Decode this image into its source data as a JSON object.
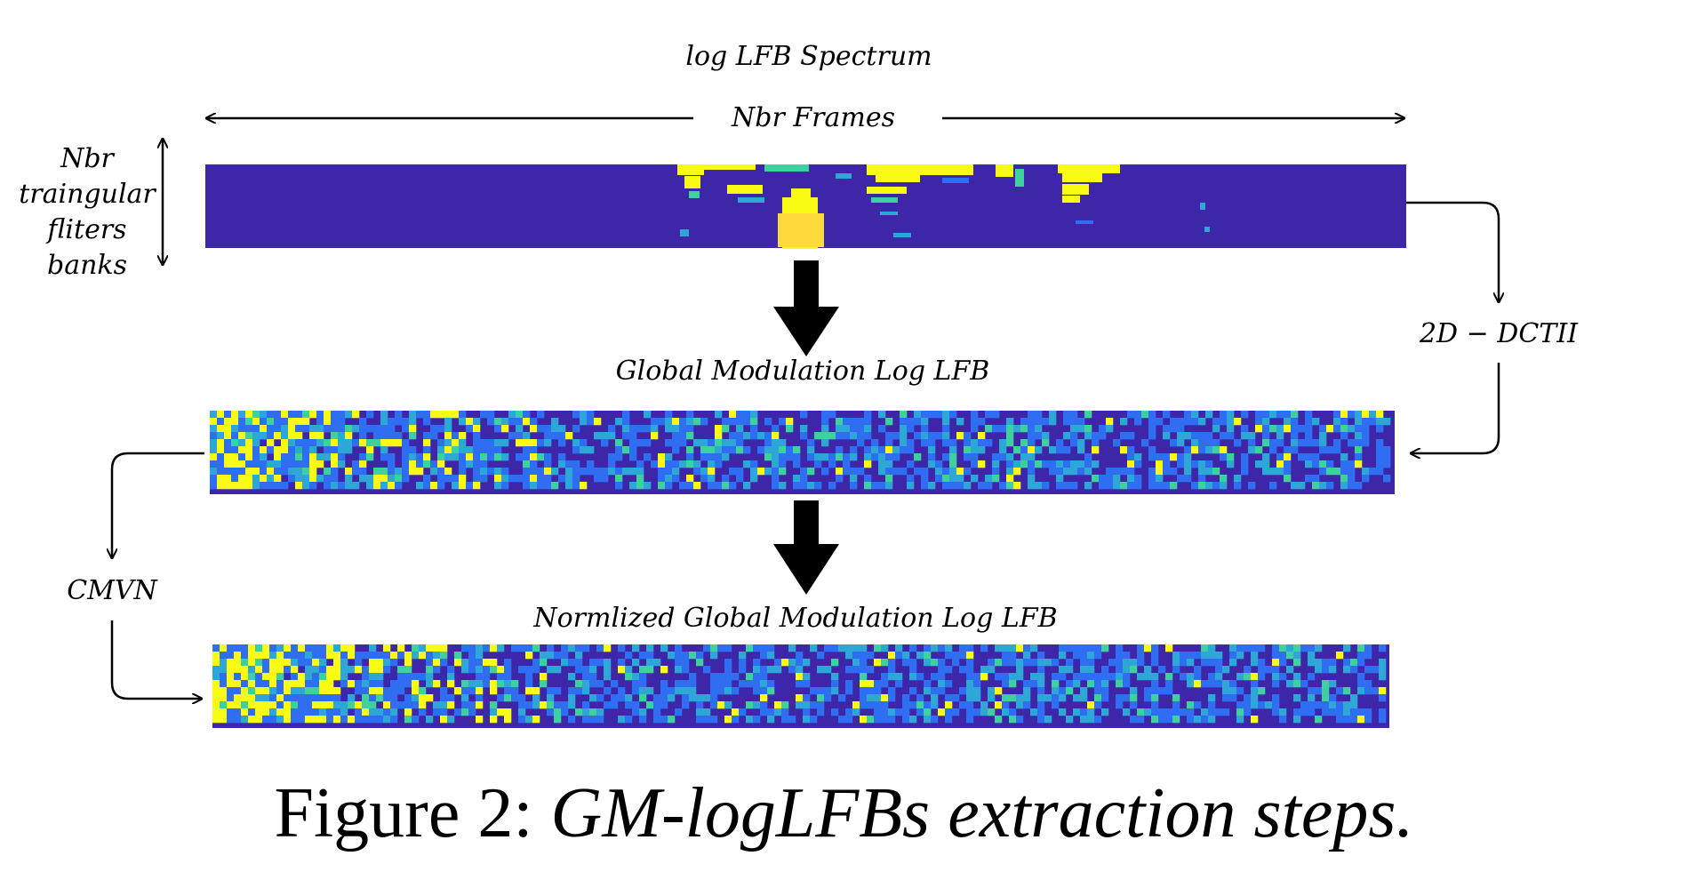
{
  "labels": {
    "top_title": "log LFB Spectrum",
    "frames_axis": "Nbr Frames",
    "filters_axis": [
      "Nbr",
      "traingular",
      "fliters",
      "banks"
    ],
    "dct_step": "2D − DCTII",
    "global_modulation": "Global Modulation Log LFB",
    "cmvn_step": "CMVN",
    "normalized_global_modulation": "Normlized Global Modulation Log LFB"
  },
  "caption": {
    "prefix": "Figure 2:",
    "title": "GM-logLFBs extraction steps."
  },
  "colors": {
    "heatmap_low": "#3e26a8",
    "heatmap_mid_low": "#2f6ef0",
    "heatmap_mid": "#2ea7d6",
    "heatmap_mid_high": "#3fd0a0",
    "heatmap_high": "#f9fb15",
    "heatmap_peak": "#fdd93a",
    "arrows": "#000000"
  },
  "icons": {
    "flow_arrow": "thick-down-arrow-icon",
    "axis_arrow": "double-headed-arrow-icon",
    "connector": "curved-connector-arrow-icon"
  }
}
